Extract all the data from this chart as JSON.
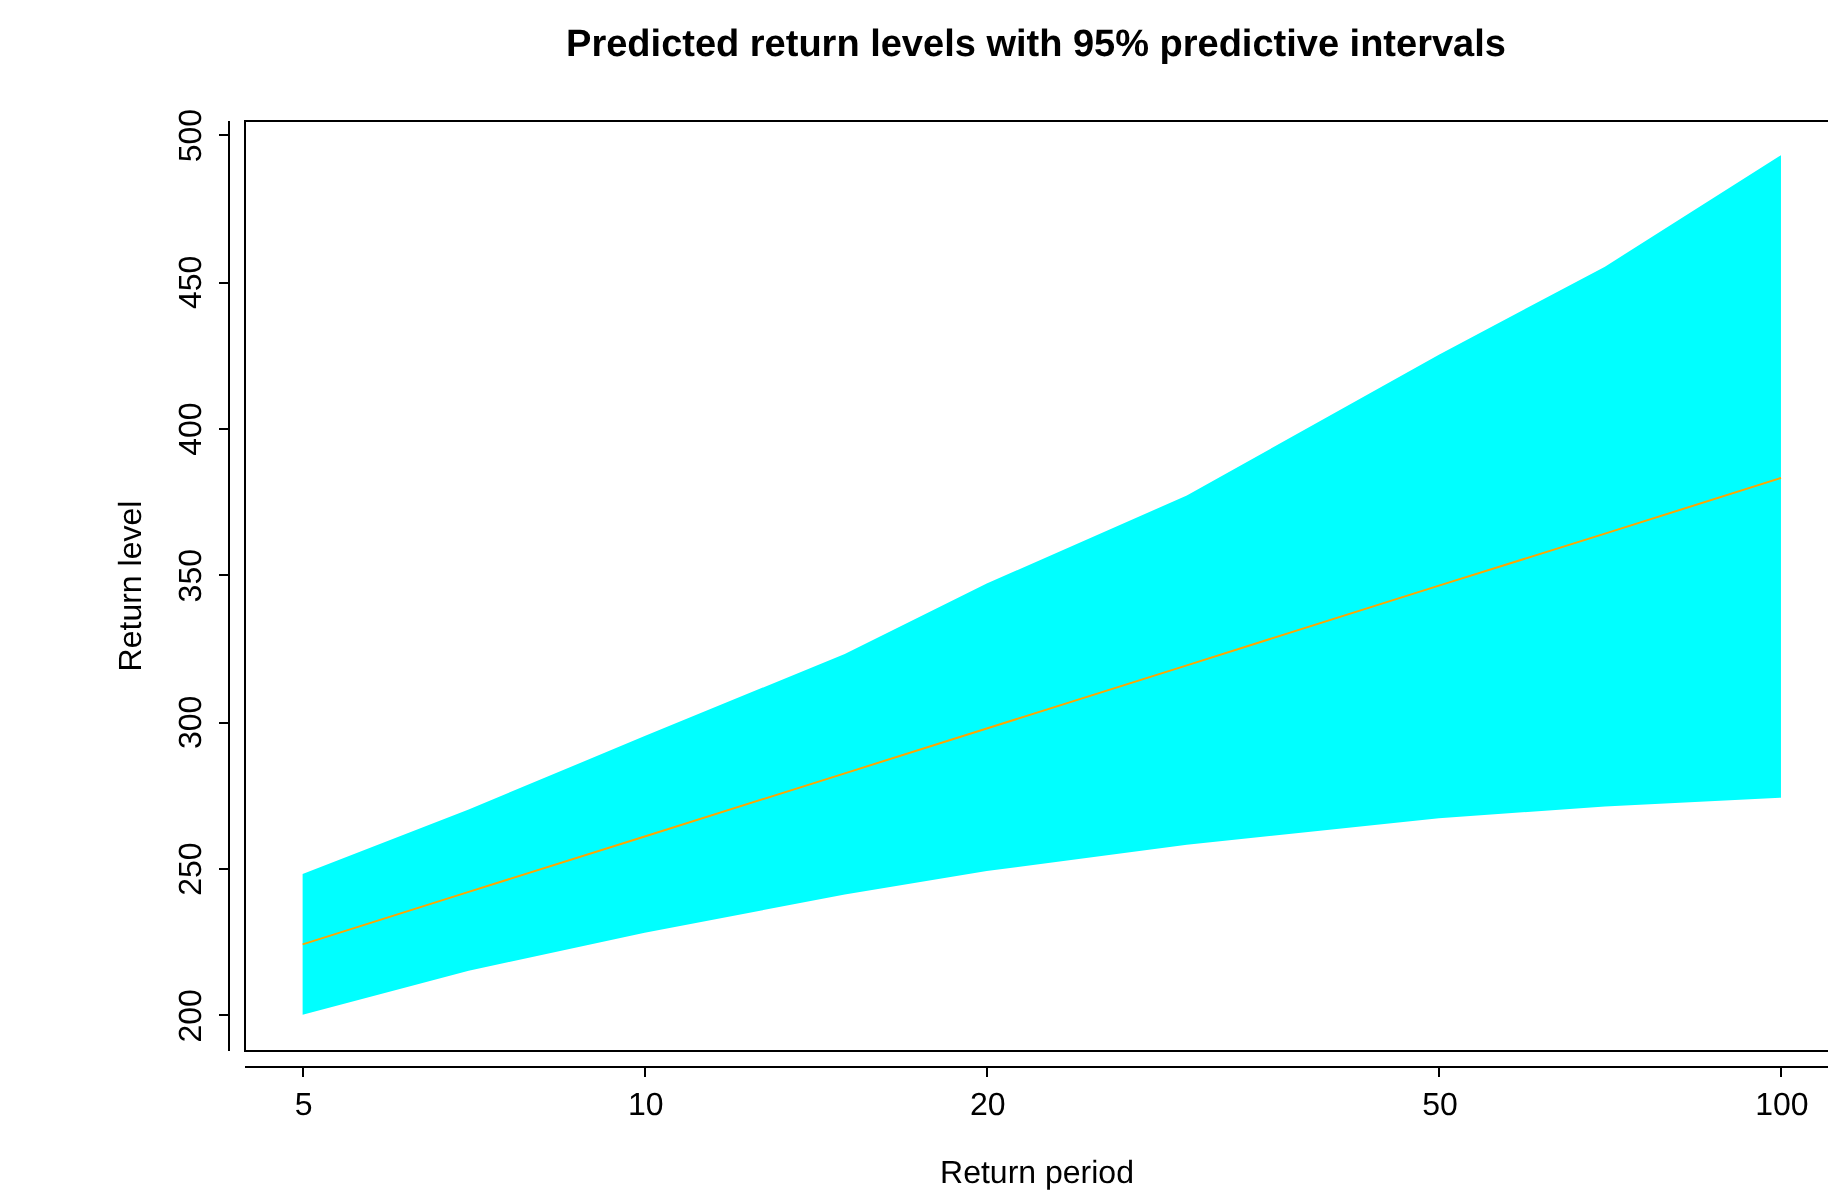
{
  "chart_data": {
    "type": "line",
    "title": "Predicted return levels with 95% predictive intervals",
    "xlabel": "Return period",
    "ylabel": "Return level",
    "log": "x",
    "grid": false,
    "xlim": [
      4.44,
      110
    ],
    "ylim": [
      188,
      505
    ],
    "xticks": [
      5,
      10,
      20,
      50,
      100
    ],
    "yticks": [
      200,
      250,
      300,
      350,
      400,
      450,
      500
    ],
    "x": [
      5,
      7,
      10,
      15,
      20,
      30,
      50,
      70,
      100
    ],
    "series": [
      {
        "color": "#ffa500",
        "values": [
          224,
          241.9,
          260.8,
          282.3,
          297.6,
          319.1,
          346.3,
          364,
          383
        ],
        "lower": [
          200,
          215,
          228,
          241,
          249,
          258,
          267,
          271,
          274
        ],
        "upper": [
          248,
          270,
          295,
          323,
          347,
          377,
          425,
          455,
          493
        ]
      }
    ]
  }
}
